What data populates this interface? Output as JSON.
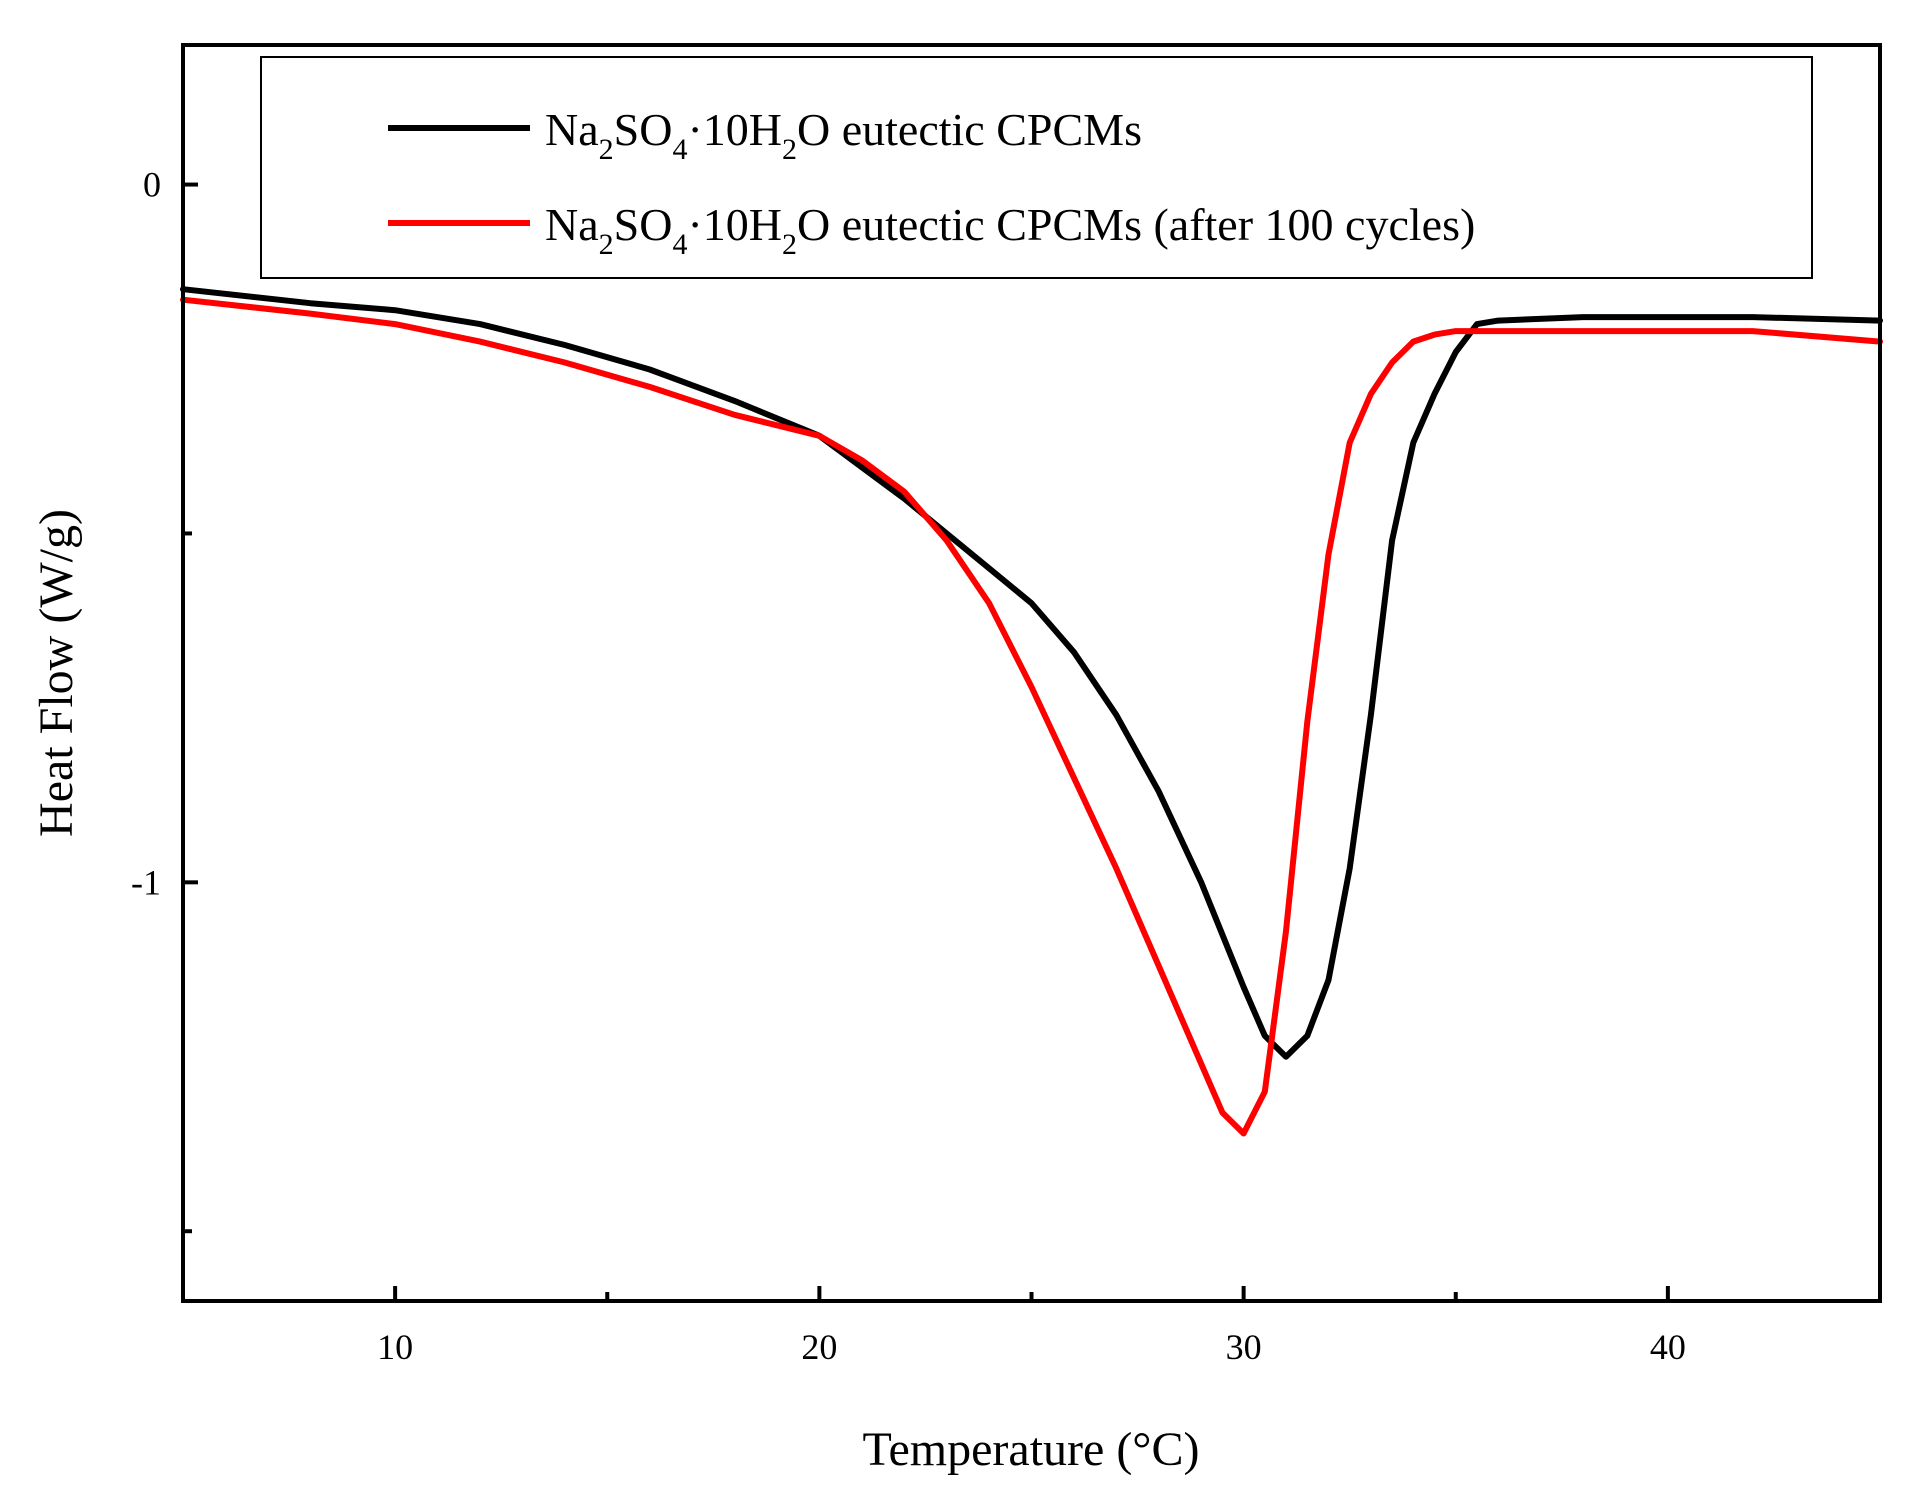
{
  "chart_data": {
    "type": "line",
    "title": "",
    "xlabel": "Temperature (°C)",
    "ylabel": "Heat Flow (W/g)",
    "xlim": [
      5,
      45
    ],
    "ylim": [
      -1.6,
      0.2
    ],
    "xticks": [
      10,
      20,
      30,
      40
    ],
    "xtick_labels": [
      "10",
      "20",
      "30",
      "40"
    ],
    "x_minor_ticks": [
      15,
      25,
      35
    ],
    "yticks": [
      0,
      -1
    ],
    "ytick_labels": [
      "0",
      "-1"
    ],
    "y_minor_ticks": [
      -0.5,
      -1.5
    ],
    "legend_position": "top",
    "series": [
      {
        "name": "Na2SO4·10H2O eutectic CPCMs",
        "legend": {
          "p1": "Na",
          "s1": "2",
          "p2": "SO",
          "s2": "4",
          "p3": "·10H",
          "s3": "2",
          "p4": "O eutectic CPCMs"
        },
        "color": "#000000",
        "points": [
          [
            5,
            -0.15
          ],
          [
            8,
            -0.17
          ],
          [
            10,
            -0.18
          ],
          [
            12,
            -0.2
          ],
          [
            14,
            -0.23
          ],
          [
            16,
            -0.265
          ],
          [
            18,
            -0.31
          ],
          [
            20,
            -0.36
          ],
          [
            22,
            -0.45
          ],
          [
            23,
            -0.5
          ],
          [
            24,
            -0.55
          ],
          [
            25,
            -0.6
          ],
          [
            26,
            -0.67
          ],
          [
            27,
            -0.76
          ],
          [
            28,
            -0.87
          ],
          [
            29,
            -1.0
          ],
          [
            30,
            -1.15
          ],
          [
            30.5,
            -1.22
          ],
          [
            31,
            -1.25
          ],
          [
            31.5,
            -1.22
          ],
          [
            32,
            -1.14
          ],
          [
            32.5,
            -0.98
          ],
          [
            33,
            -0.76
          ],
          [
            33.5,
            -0.51
          ],
          [
            34,
            -0.37
          ],
          [
            34.5,
            -0.3
          ],
          [
            35,
            -0.24
          ],
          [
            35.5,
            -0.2
          ],
          [
            36,
            -0.195
          ],
          [
            38,
            -0.19
          ],
          [
            40,
            -0.19
          ],
          [
            42,
            -0.19
          ],
          [
            45,
            -0.195
          ]
        ]
      },
      {
        "name": "Na2SO4·10H2O eutectic CPCMs (after 100 cycles)",
        "legend": {
          "p1": "Na",
          "s1": "2",
          "p2": "SO",
          "s2": "4",
          "p3": "·10H",
          "s3": "2",
          "p4": "O eutectic CPCMs (after 100 cycles)"
        },
        "color": "#ff0000",
        "points": [
          [
            5,
            -0.165
          ],
          [
            8,
            -0.185
          ],
          [
            10,
            -0.2
          ],
          [
            12,
            -0.225
          ],
          [
            14,
            -0.255
          ],
          [
            16,
            -0.29
          ],
          [
            18,
            -0.33
          ],
          [
            20,
            -0.36
          ],
          [
            21,
            -0.395
          ],
          [
            22,
            -0.44
          ],
          [
            23,
            -0.51
          ],
          [
            24,
            -0.6
          ],
          [
            25,
            -0.72
          ],
          [
            26,
            -0.85
          ],
          [
            27,
            -0.98
          ],
          [
            28,
            -1.12
          ],
          [
            29,
            -1.26
          ],
          [
            29.5,
            -1.33
          ],
          [
            30,
            -1.36
          ],
          [
            30.5,
            -1.3
          ],
          [
            31,
            -1.07
          ],
          [
            31.5,
            -0.77
          ],
          [
            32,
            -0.53
          ],
          [
            32.5,
            -0.37
          ],
          [
            33,
            -0.3
          ],
          [
            33.5,
            -0.255
          ],
          [
            34,
            -0.225
          ],
          [
            34.5,
            -0.215
          ],
          [
            35,
            -0.21
          ],
          [
            38,
            -0.21
          ],
          [
            40,
            -0.21
          ],
          [
            42,
            -0.21
          ],
          [
            45,
            -0.225
          ]
        ]
      }
    ]
  }
}
